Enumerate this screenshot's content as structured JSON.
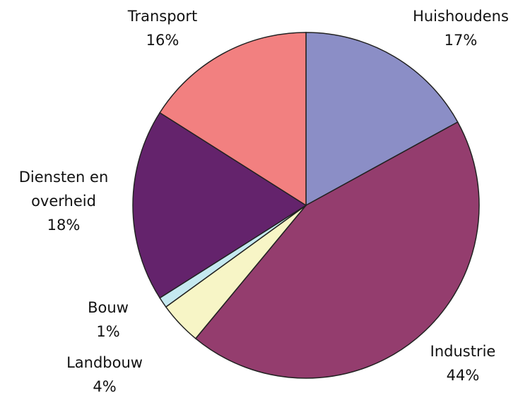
{
  "chart_data": {
    "type": "pie",
    "categories": [
      "Huishoudens",
      "Industrie",
      "Landbouw",
      "Bouw",
      "Diensten en overheid",
      "Transport"
    ],
    "values": [
      17,
      44,
      4,
      1,
      18,
      16
    ],
    "value_labels": [
      "17%",
      "44%",
      "4%",
      "1%",
      "18%",
      "16%"
    ],
    "colors": [
      "#8b8ec6",
      "#943d6e",
      "#f7f5c6",
      "#c5e9f0",
      "#64236c",
      "#f28080"
    ]
  }
}
